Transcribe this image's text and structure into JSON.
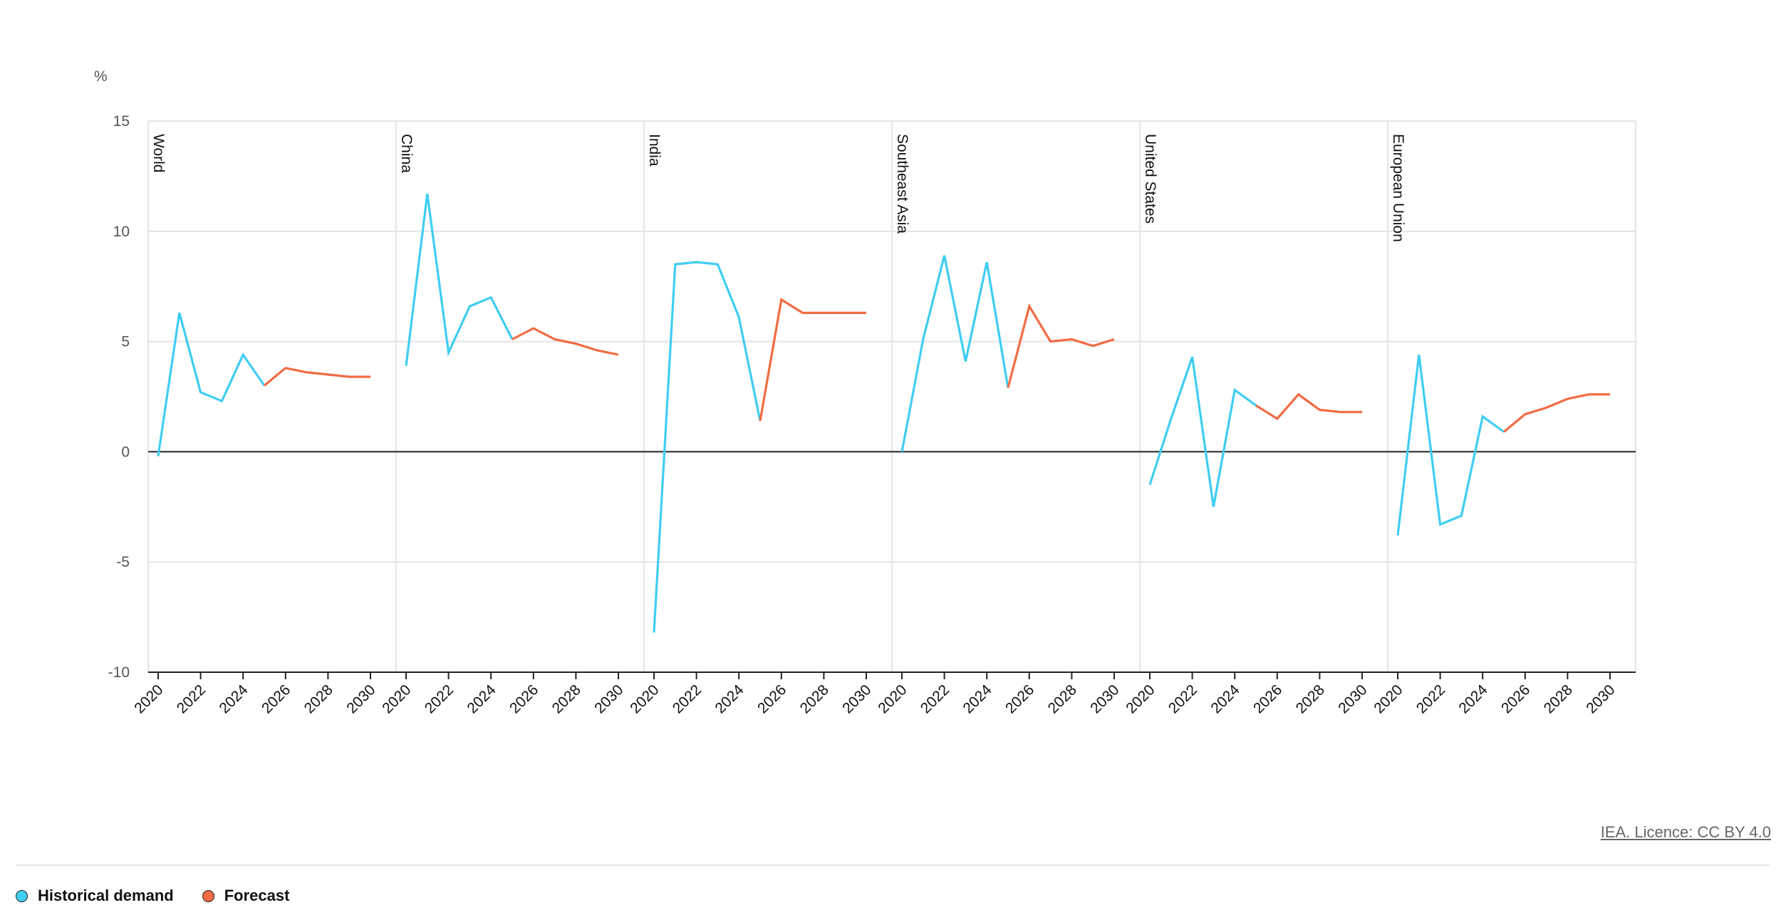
{
  "chart_data": {
    "type": "line",
    "ylabel": "%",
    "ylim": [
      -10,
      15
    ],
    "yticks": [
      15,
      10,
      5,
      0,
      -5,
      -10
    ],
    "xlim": [
      2020,
      2030
    ],
    "xticks": [
      2020,
      2022,
      2024,
      2026,
      2028,
      2030
    ],
    "grid": true,
    "panels": [
      {
        "name": "World",
        "historical": {
          "x": [
            2020,
            2021,
            2022,
            2023,
            2024,
            2025
          ],
          "y": [
            -0.2,
            6.3,
            2.7,
            2.3,
            4.4,
            3.0
          ]
        },
        "forecast": {
          "x": [
            2025,
            2026,
            2027,
            2028,
            2029,
            2030
          ],
          "y": [
            3.0,
            3.8,
            3.6,
            3.5,
            3.4,
            3.4
          ]
        }
      },
      {
        "name": "China",
        "historical": {
          "x": [
            2020,
            2021,
            2022,
            2023,
            2024,
            2025
          ],
          "y": [
            3.9,
            11.7,
            4.5,
            6.6,
            7.0,
            5.1
          ]
        },
        "forecast": {
          "x": [
            2025,
            2026,
            2027,
            2028,
            2029,
            2030
          ],
          "y": [
            5.1,
            5.6,
            5.1,
            4.9,
            4.6,
            4.4
          ]
        }
      },
      {
        "name": "India",
        "historical": {
          "x": [
            2020,
            2021,
            2022,
            2023,
            2024,
            2025
          ],
          "y": [
            -8.2,
            8.5,
            8.6,
            8.5,
            6.1,
            1.4
          ]
        },
        "forecast": {
          "x": [
            2025,
            2026,
            2027,
            2028,
            2029,
            2030
          ],
          "y": [
            1.4,
            6.9,
            6.3,
            6.3,
            6.3,
            6.3
          ]
        }
      },
      {
        "name": "Southeast Asia",
        "historical": {
          "x": [
            2020,
            2021,
            2022,
            2023,
            2024,
            2025
          ],
          "y": [
            0.0,
            5.1,
            8.9,
            4.1,
            8.6,
            2.9
          ]
        },
        "forecast": {
          "x": [
            2025,
            2026,
            2027,
            2028,
            2029,
            2030
          ],
          "y": [
            2.9,
            6.6,
            5.0,
            5.1,
            4.8,
            5.1
          ]
        }
      },
      {
        "name": "United States",
        "historical": {
          "x": [
            2020,
            2021,
            2022,
            2023,
            2024,
            2025
          ],
          "y": [
            -1.5,
            1.5,
            4.3,
            -2.5,
            2.8,
            2.1
          ]
        },
        "forecast": {
          "x": [
            2025,
            2026,
            2027,
            2028,
            2029,
            2030
          ],
          "y": [
            2.1,
            1.5,
            2.6,
            1.9,
            1.8,
            1.8
          ]
        }
      },
      {
        "name": "European Union",
        "historical": {
          "x": [
            2020,
            2021,
            2022,
            2023,
            2024,
            2025
          ],
          "y": [
            -3.8,
            4.4,
            -3.3,
            -2.9,
            1.6,
            0.9
          ]
        },
        "forecast": {
          "x": [
            2025,
            2026,
            2027,
            2028,
            2029,
            2030
          ],
          "y": [
            0.9,
            1.7,
            2.0,
            2.4,
            2.6,
            2.6
          ]
        }
      }
    ],
    "legend": {
      "placement": "bottom-left",
      "entries": [
        {
          "label": "Historical demand",
          "color": "#3fcdf3"
        },
        {
          "label": "Forecast",
          "color": "#f26b43"
        }
      ]
    }
  },
  "licence_text": "IEA. Licence: CC BY 4.0"
}
